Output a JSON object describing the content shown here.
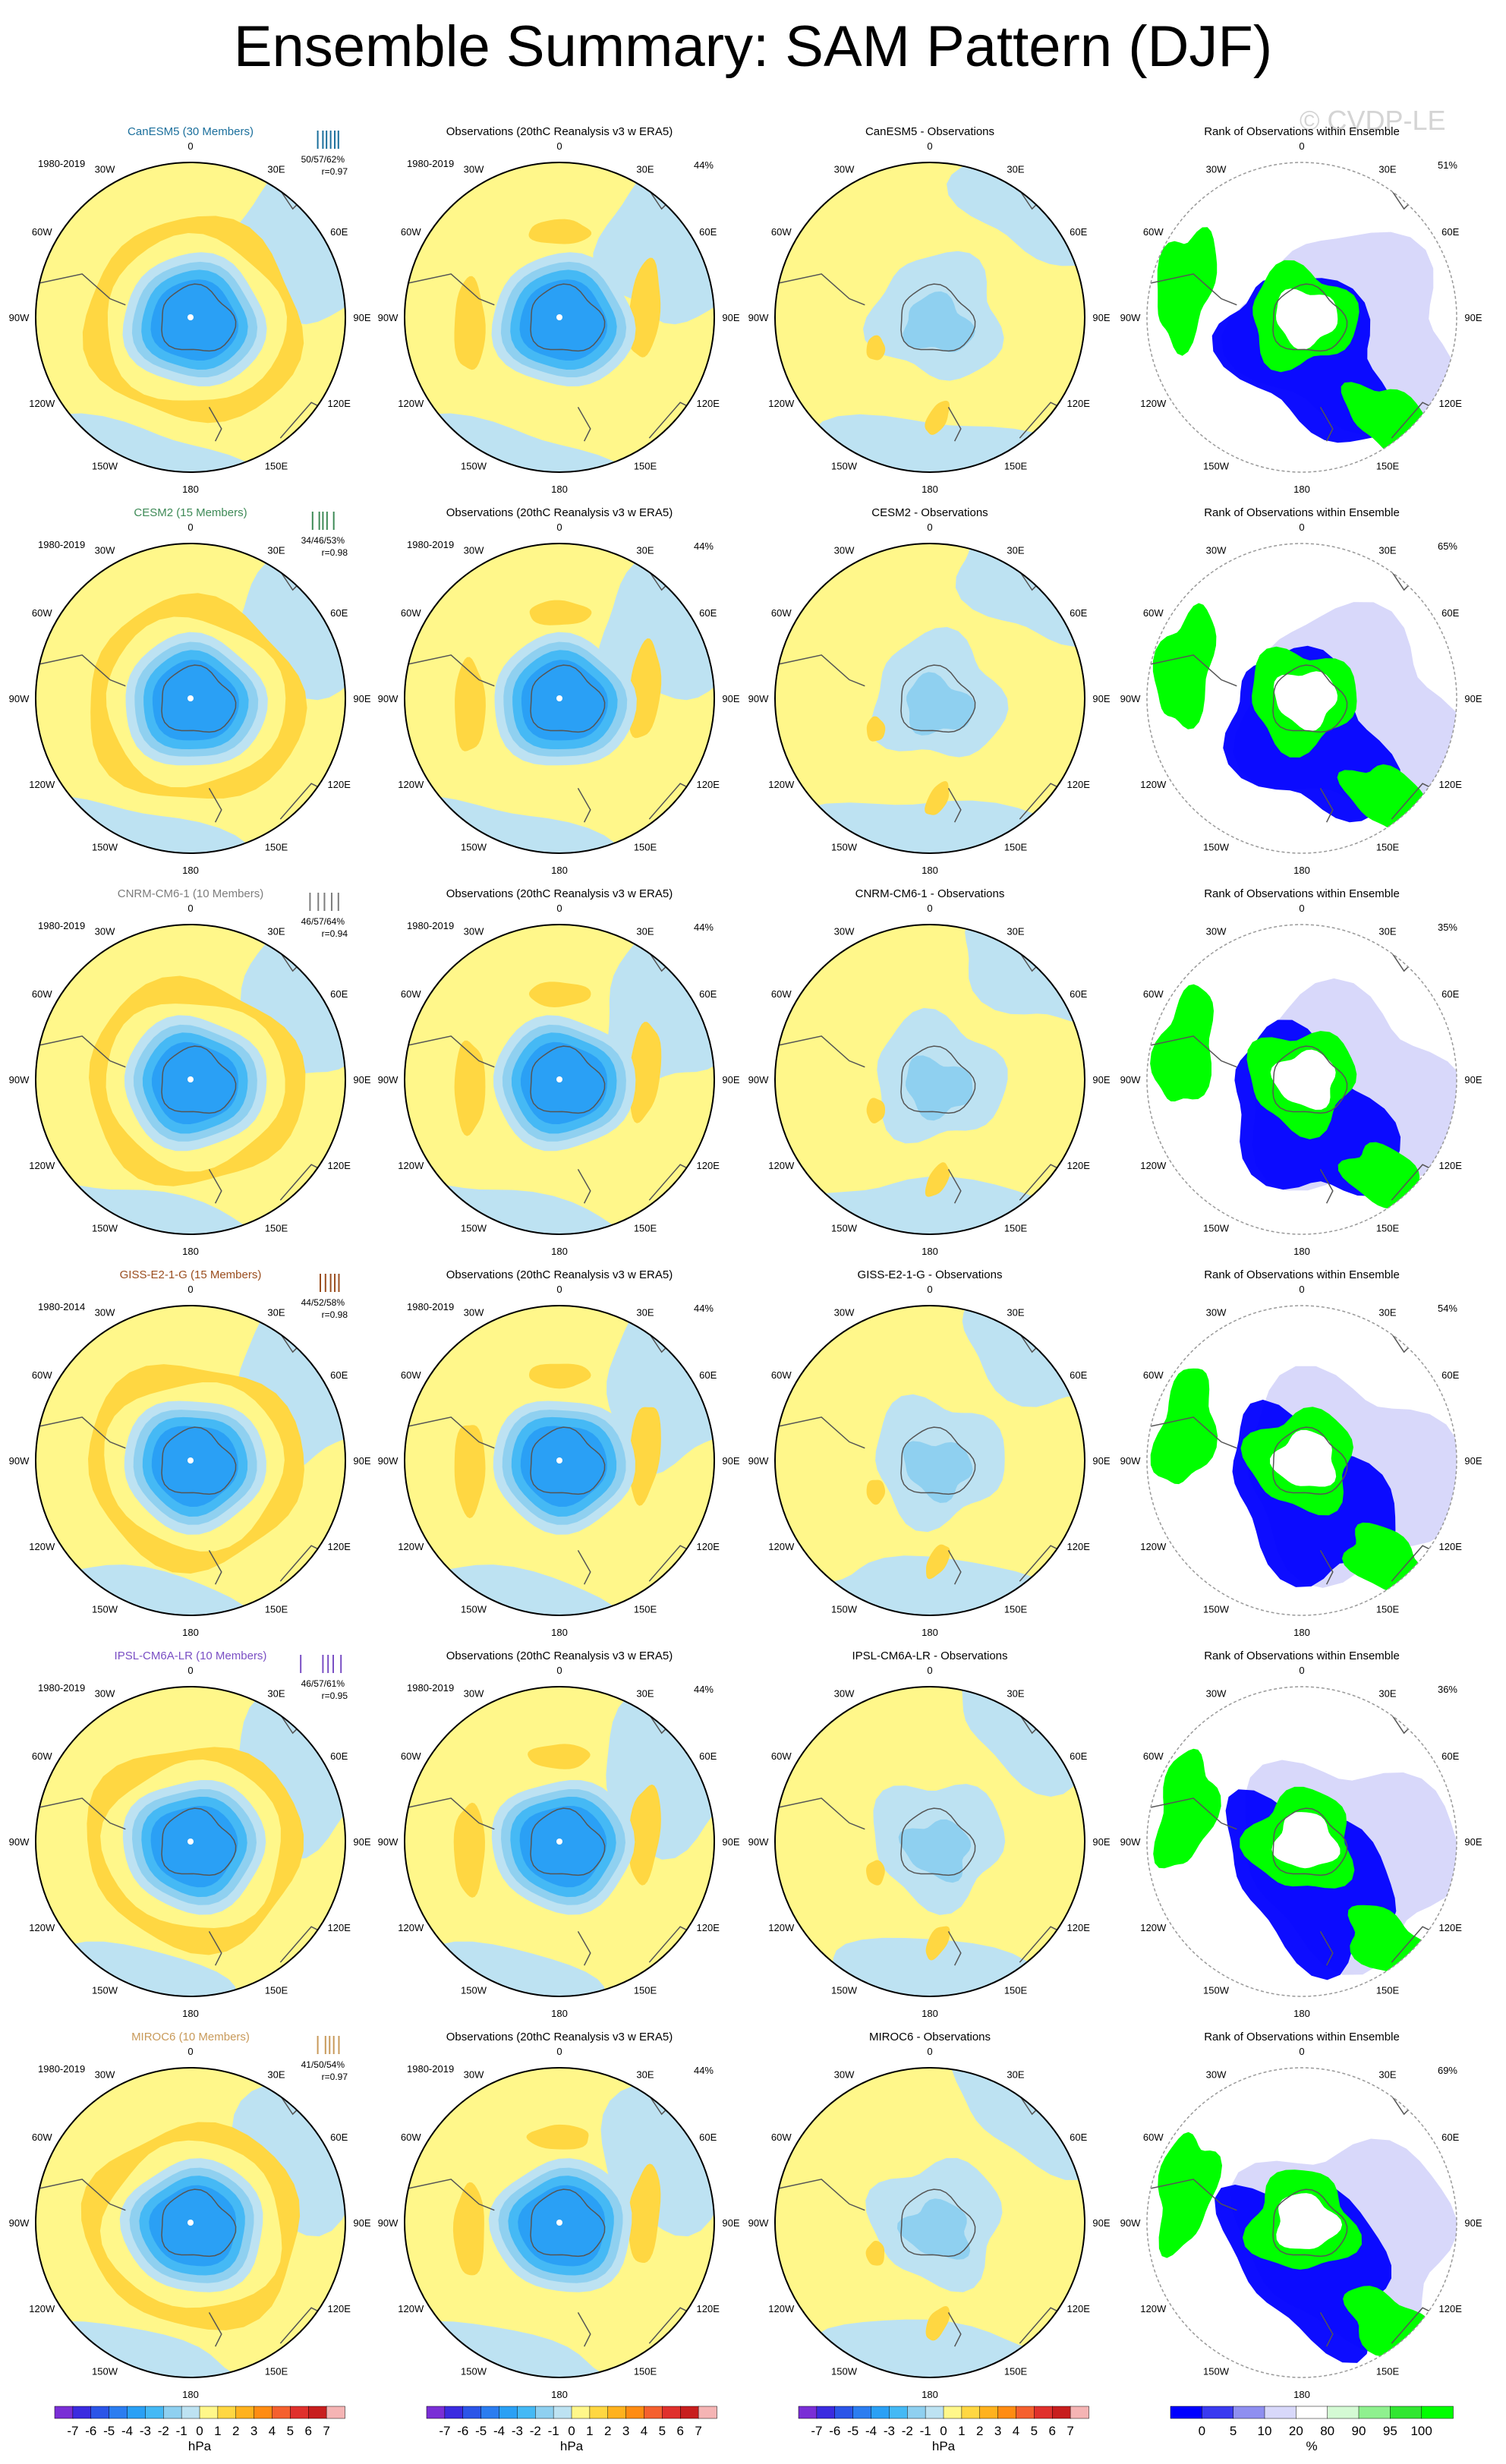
{
  "title": "Ensemble Summary: SAM Pattern (DJF)",
  "watermark": "© CVDP-LE",
  "longitude_labels": {
    "top": "0",
    "bottom": "180",
    "upper_left": "30W",
    "upper_right": "30E",
    "mid_upper_left": "60W",
    "mid_upper_right": "60E",
    "left": "90W",
    "right": "90E",
    "mid_lower_left": "120W",
    "mid_lower_right": "120E",
    "lower_left": "150W",
    "lower_right": "150E"
  },
  "rows": [
    {
      "model": {
        "title": "CanESM5 (30 Members)",
        "color": "#1b6f9c",
        "period": "1980-2019",
        "stats": "50/57/62%",
        "corr": "r=0.97",
        "ticks": [
          0.45,
          0.55,
          0.62,
          0.7,
          0.78,
          0.85
        ]
      },
      "obs": {
        "title": "Observations (20thC Reanalysis v3 w ERA5)",
        "period": "1980-2019",
        "pct": "44%"
      },
      "diff": {
        "title": "CanESM5 - Observations"
      },
      "rank": {
        "title": "Rank of Observations within Ensemble",
        "pct": "51%"
      }
    },
    {
      "model": {
        "title": "CESM2 (15 Members)",
        "color": "#3e8a57",
        "period": "1980-2019",
        "stats": "34/46/53%",
        "corr": "r=0.98",
        "ticks": [
          0.35,
          0.48,
          0.55,
          0.63,
          0.76
        ]
      },
      "obs": {
        "title": "Observations (20thC Reanalysis v3 w ERA5)",
        "period": "1980-2019",
        "pct": "44%"
      },
      "diff": {
        "title": "CESM2 - Observations"
      },
      "rank": {
        "title": "Rank of Observations within Ensemble",
        "pct": "65%"
      }
    },
    {
      "model": {
        "title": "CNRM-CM6-1 (10 Members)",
        "color": "#7d7d7d",
        "period": "1980-2019",
        "stats": "46/57/64%",
        "corr": "r=0.94",
        "ticks": [
          0.3,
          0.46,
          0.58,
          0.72,
          0.85
        ]
      },
      "obs": {
        "title": "Observations (20thC Reanalysis v3 w ERA5)",
        "period": "1980-2019",
        "pct": "44%"
      },
      "diff": {
        "title": "CNRM-CM6-1 - Observations"
      },
      "rank": {
        "title": "Rank of Observations within Ensemble",
        "pct": "35%"
      }
    },
    {
      "model": {
        "title": "GISS-E2-1-G (15 Members)",
        "color": "#9a4d1e",
        "period": "1980-2014",
        "stats": "44/52/58%",
        "corr": "r=0.98",
        "ticks": [
          0.5,
          0.6,
          0.7,
          0.78,
          0.86
        ]
      },
      "obs": {
        "title": "Observations (20thC Reanalysis v3 w ERA5)",
        "period": "1980-2019",
        "pct": "44%"
      },
      "diff": {
        "title": "GISS-E2-1-G - Observations"
      },
      "rank": {
        "title": "Rank of Observations within Ensemble",
        "pct": "54%"
      }
    },
    {
      "model": {
        "title": "IPSL-CM6A-LR (10 Members)",
        "color": "#7a4fc4",
        "period": "1980-2019",
        "stats": "46/57/61%",
        "corr": "r=0.95",
        "ticks": [
          0.12,
          0.55,
          0.65,
          0.75,
          0.9
        ]
      },
      "obs": {
        "title": "Observations (20thC Reanalysis v3 w ERA5)",
        "period": "1980-2019",
        "pct": "44%"
      },
      "diff": {
        "title": "IPSL-CM6A-LR - Observations"
      },
      "rank": {
        "title": "Rank of Observations within Ensemble",
        "pct": "36%"
      }
    },
    {
      "model": {
        "title": "MIROC6 (10 Members)",
        "color": "#c89a5a",
        "period": "1980-2019",
        "stats": "41/50/54%",
        "corr": "r=0.97",
        "ticks": [
          0.45,
          0.6,
          0.68,
          0.76,
          0.86
        ]
      },
      "obs": {
        "title": "Observations (20thC Reanalysis v3 w ERA5)",
        "period": "1980-2019",
        "pct": "44%"
      },
      "diff": {
        "title": "MIROC6 - Observations"
      },
      "rank": {
        "title": "Rank of Observations within Ensemble",
        "pct": "69%"
      }
    }
  ],
  "colorbars": [
    {
      "unit": "hPa",
      "labels": [
        "-7",
        "-6",
        "-5",
        "-4",
        "-3",
        "-2",
        "-1",
        "0",
        "1",
        "2",
        "3",
        "4",
        "5",
        "6",
        "7"
      ],
      "colors": [
        "#7a2ed6",
        "#3b2be0",
        "#2b55e8",
        "#2b7df0",
        "#2aa0f5",
        "#45b9f5",
        "#8fd0f0",
        "#bde2f2",
        "#fff78a",
        "#ffd742",
        "#ffb21e",
        "#ff8c12",
        "#f5602e",
        "#e0302c",
        "#c81e1e",
        "#f5b4b4"
      ]
    },
    {
      "unit": "hPa",
      "labels": [
        "-7",
        "-6",
        "-5",
        "-4",
        "-3",
        "-2",
        "-1",
        "0",
        "1",
        "2",
        "3",
        "4",
        "5",
        "6",
        "7"
      ],
      "colors": [
        "#7a2ed6",
        "#3b2be0",
        "#2b55e8",
        "#2b7df0",
        "#2aa0f5",
        "#45b9f5",
        "#8fd0f0",
        "#bde2f2",
        "#fff78a",
        "#ffd742",
        "#ffb21e",
        "#ff8c12",
        "#f5602e",
        "#e0302c",
        "#c81e1e",
        "#f5b4b4"
      ]
    },
    {
      "unit": "hPa",
      "labels": [
        "-7",
        "-6",
        "-5",
        "-4",
        "-3",
        "-2",
        "-1",
        "0",
        "1",
        "2",
        "3",
        "4",
        "5",
        "6",
        "7"
      ],
      "colors": [
        "#7a2ed6",
        "#3b2be0",
        "#2b55e8",
        "#2b7df0",
        "#2aa0f5",
        "#45b9f5",
        "#8fd0f0",
        "#bde2f2",
        "#fff78a",
        "#ffd742",
        "#ffb21e",
        "#ff8c12",
        "#f5602e",
        "#e0302c",
        "#c81e1e",
        "#f5b4b4"
      ]
    },
    {
      "unit": "%",
      "labels": [
        "0",
        "5",
        "10",
        "20",
        "80",
        "90",
        "95",
        "100"
      ],
      "colors": [
        "#0000ff",
        "#3a3af0",
        "#8f8ff0",
        "#d8d8fa",
        "#ffffff",
        "#d4fad4",
        "#8ff08f",
        "#32e632",
        "#00ff00"
      ]
    }
  ],
  "palette": {
    "yellow": "#fff78a",
    "lightblue": "#bde2f2",
    "orange": "#ffd742",
    "blue1": "#8fd0f0",
    "blue2": "#45b9f5",
    "blue3": "#2aa0f5",
    "blue4": "#2b7df0",
    "rank_blue": "#0000ff",
    "rank_light": "#d8d8fa",
    "rank_green": "#00ff00"
  }
}
